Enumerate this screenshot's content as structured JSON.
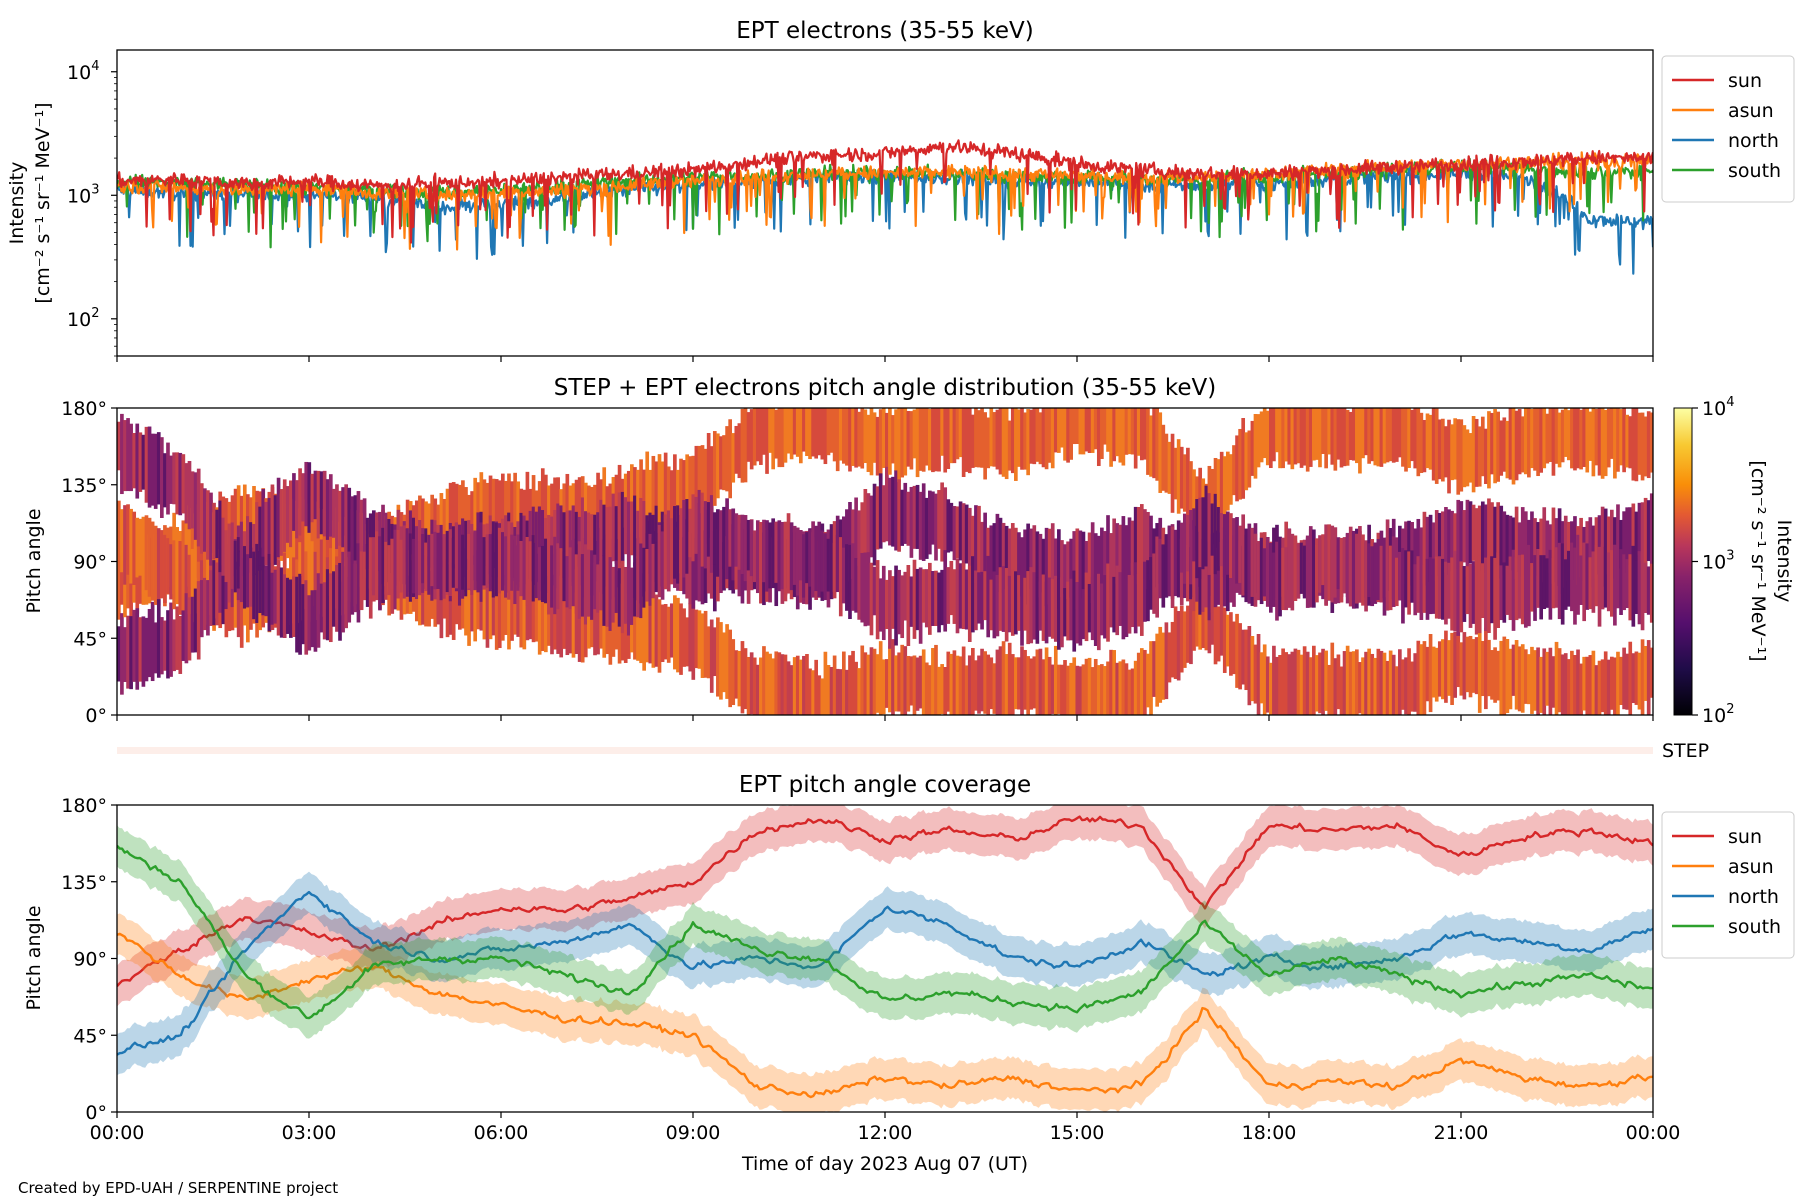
{
  "credit": "Created by EPD-UAH / SERPENTINE project",
  "xlabel": "Time of day 2023 Aug 07 (UT)",
  "time_ticks": [
    "00:00",
    "03:00",
    "06:00",
    "09:00",
    "12:00",
    "15:00",
    "18:00",
    "21:00",
    "00:00"
  ],
  "series_colors": {
    "sun": "#d62728",
    "asun": "#ff7f0e",
    "north": "#1f77b4",
    "south": "#2ca02c"
  },
  "chart_data": [
    {
      "type": "line",
      "title": "EPT electrons (35-55 keV)",
      "ylabel": [
        "Intensity",
        "[cm⁻² s⁻¹ sr⁻¹ MeV⁻¹]"
      ],
      "yscale": "log",
      "ylim": [
        50,
        15000
      ],
      "yticks": [
        {
          "value": 100,
          "base": "10",
          "exp": "2"
        },
        {
          "value": 1000,
          "base": "10",
          "exp": "3"
        },
        {
          "value": 10000,
          "base": "10",
          "exp": "4"
        }
      ],
      "x_unit": "hours",
      "xlim": [
        0,
        24
      ],
      "legend_position": "right",
      "series": [
        {
          "name": "sun",
          "x": [
            0,
            1,
            2,
            3,
            4,
            5,
            6,
            7,
            8,
            9,
            10,
            11,
            12,
            13,
            14,
            15,
            16,
            17,
            18,
            19,
            20,
            21,
            22,
            23,
            24
          ],
          "y": [
            1300,
            1350,
            1250,
            1300,
            1200,
            1250,
            1300,
            1400,
            1500,
            1600,
            1900,
            2100,
            2200,
            2500,
            2200,
            1800,
            1600,
            1500,
            1500,
            1600,
            1700,
            1800,
            1900,
            2000,
            2000
          ]
        },
        {
          "name": "asun",
          "x": [
            0,
            1,
            2,
            3,
            4,
            5,
            6,
            7,
            8,
            9,
            10,
            11,
            12,
            13,
            14,
            15,
            16,
            17,
            18,
            19,
            20,
            21,
            22,
            23,
            24
          ],
          "y": [
            1200,
            1150,
            1100,
            1150,
            1050,
            1000,
            1050,
            1100,
            1200,
            1300,
            1400,
            1500,
            1500,
            1550,
            1500,
            1450,
            1400,
            1400,
            1500,
            1600,
            1700,
            1800,
            1850,
            1900,
            1900
          ]
        },
        {
          "name": "north",
          "x": [
            0,
            1,
            2,
            3,
            4,
            5,
            6,
            7,
            8,
            9,
            10,
            11,
            12,
            13,
            14,
            15,
            16,
            17,
            18,
            19,
            20,
            21,
            22,
            23,
            24
          ],
          "y": [
            1100,
            1050,
            1000,
            1000,
            950,
            800,
            850,
            950,
            1100,
            1200,
            1300,
            1400,
            1400,
            1400,
            1300,
            1300,
            1200,
            1200,
            1250,
            1350,
            1450,
            1500,
            1400,
            650,
            600
          ]
        },
        {
          "name": "south",
          "x": [
            0,
            1,
            2,
            3,
            4,
            5,
            6,
            7,
            8,
            9,
            10,
            11,
            12,
            13,
            14,
            15,
            16,
            17,
            18,
            19,
            20,
            21,
            22,
            23,
            24
          ],
          "y": [
            1300,
            1250,
            1200,
            1150,
            1100,
            1050,
            1100,
            1200,
            1300,
            1400,
            1450,
            1500,
            1500,
            1500,
            1450,
            1400,
            1350,
            1350,
            1400,
            1500,
            1600,
            1700,
            1700,
            1500,
            1600
          ]
        }
      ]
    },
    {
      "type": "heatmap",
      "title": "STEP + EPT electrons pitch angle distribution (35-55 keV)",
      "ylabel": "Pitch angle",
      "ylim": [
        0,
        180
      ],
      "yticks": [
        "0°",
        "45°",
        "90°",
        "135°",
        "180°"
      ],
      "xlim": [
        0,
        24
      ],
      "colorbar": {
        "scale": "log",
        "range": [
          100,
          10000
        ],
        "ticks": [
          {
            "value": 100,
            "base": "10",
            "exp": "2"
          },
          {
            "value": 1000,
            "base": "10",
            "exp": "3"
          },
          {
            "value": 10000,
            "base": "10",
            "exp": "4"
          }
        ],
        "label": "Intensity",
        "unit": "[cm⁻² s⁻¹ sr⁻¹ MeV⁻¹]",
        "colormap": "inferno"
      }
    },
    {
      "type": "band",
      "label": "STEP",
      "color": "#fdeee9"
    },
    {
      "type": "line",
      "title": "EPT pitch angle coverage",
      "ylabel": "Pitch angle",
      "ylim": [
        0,
        180
      ],
      "yticks": [
        "0°",
        "45°",
        "90°",
        "135°",
        "180°"
      ],
      "xlim": [
        0,
        24
      ],
      "legend_position": "right",
      "band_halfwidth_deg": 12,
      "series": [
        {
          "name": "sun",
          "x": [
            0,
            1,
            2,
            3,
            4,
            5,
            6,
            7,
            8,
            9,
            10,
            11,
            12,
            13,
            14,
            15,
            16,
            17,
            18,
            19,
            20,
            21,
            22,
            23,
            24
          ],
          "y": [
            75,
            95,
            115,
            105,
            95,
            110,
            120,
            118,
            125,
            135,
            165,
            172,
            160,
            165,
            160,
            172,
            168,
            120,
            168,
            165,
            168,
            150,
            162,
            165,
            158
          ]
        },
        {
          "name": "asun",
          "x": [
            0,
            1,
            2,
            3,
            4,
            5,
            6,
            7,
            8,
            9,
            10,
            11,
            12,
            13,
            14,
            15,
            16,
            17,
            18,
            19,
            20,
            21,
            22,
            23,
            24
          ],
          "y": [
            105,
            80,
            65,
            78,
            85,
            70,
            62,
            55,
            52,
            45,
            15,
            10,
            20,
            15,
            20,
            12,
            15,
            60,
            15,
            18,
            15,
            30,
            20,
            15,
            22
          ]
        },
        {
          "name": "north",
          "x": [
            0,
            1,
            2,
            3,
            4,
            5,
            6,
            7,
            8,
            9,
            10,
            11,
            12,
            13,
            14,
            15,
            16,
            17,
            18,
            19,
            20,
            21,
            22,
            23,
            24
          ],
          "y": [
            35,
            45,
            95,
            130,
            100,
            90,
            95,
            100,
            110,
            85,
            90,
            85,
            120,
            110,
            90,
            85,
            100,
            80,
            90,
            85,
            90,
            105,
            100,
            95,
            108
          ]
        },
        {
          "name": "south",
          "x": [
            0,
            1,
            2,
            3,
            4,
            5,
            6,
            7,
            8,
            9,
            10,
            11,
            12,
            13,
            14,
            15,
            16,
            17,
            18,
            19,
            20,
            21,
            22,
            23,
            24
          ],
          "y": [
            155,
            135,
            80,
            55,
            85,
            90,
            90,
            80,
            70,
            110,
            95,
            90,
            65,
            70,
            65,
            60,
            70,
            110,
            80,
            90,
            80,
            70,
            75,
            80,
            72
          ]
        }
      ]
    }
  ]
}
